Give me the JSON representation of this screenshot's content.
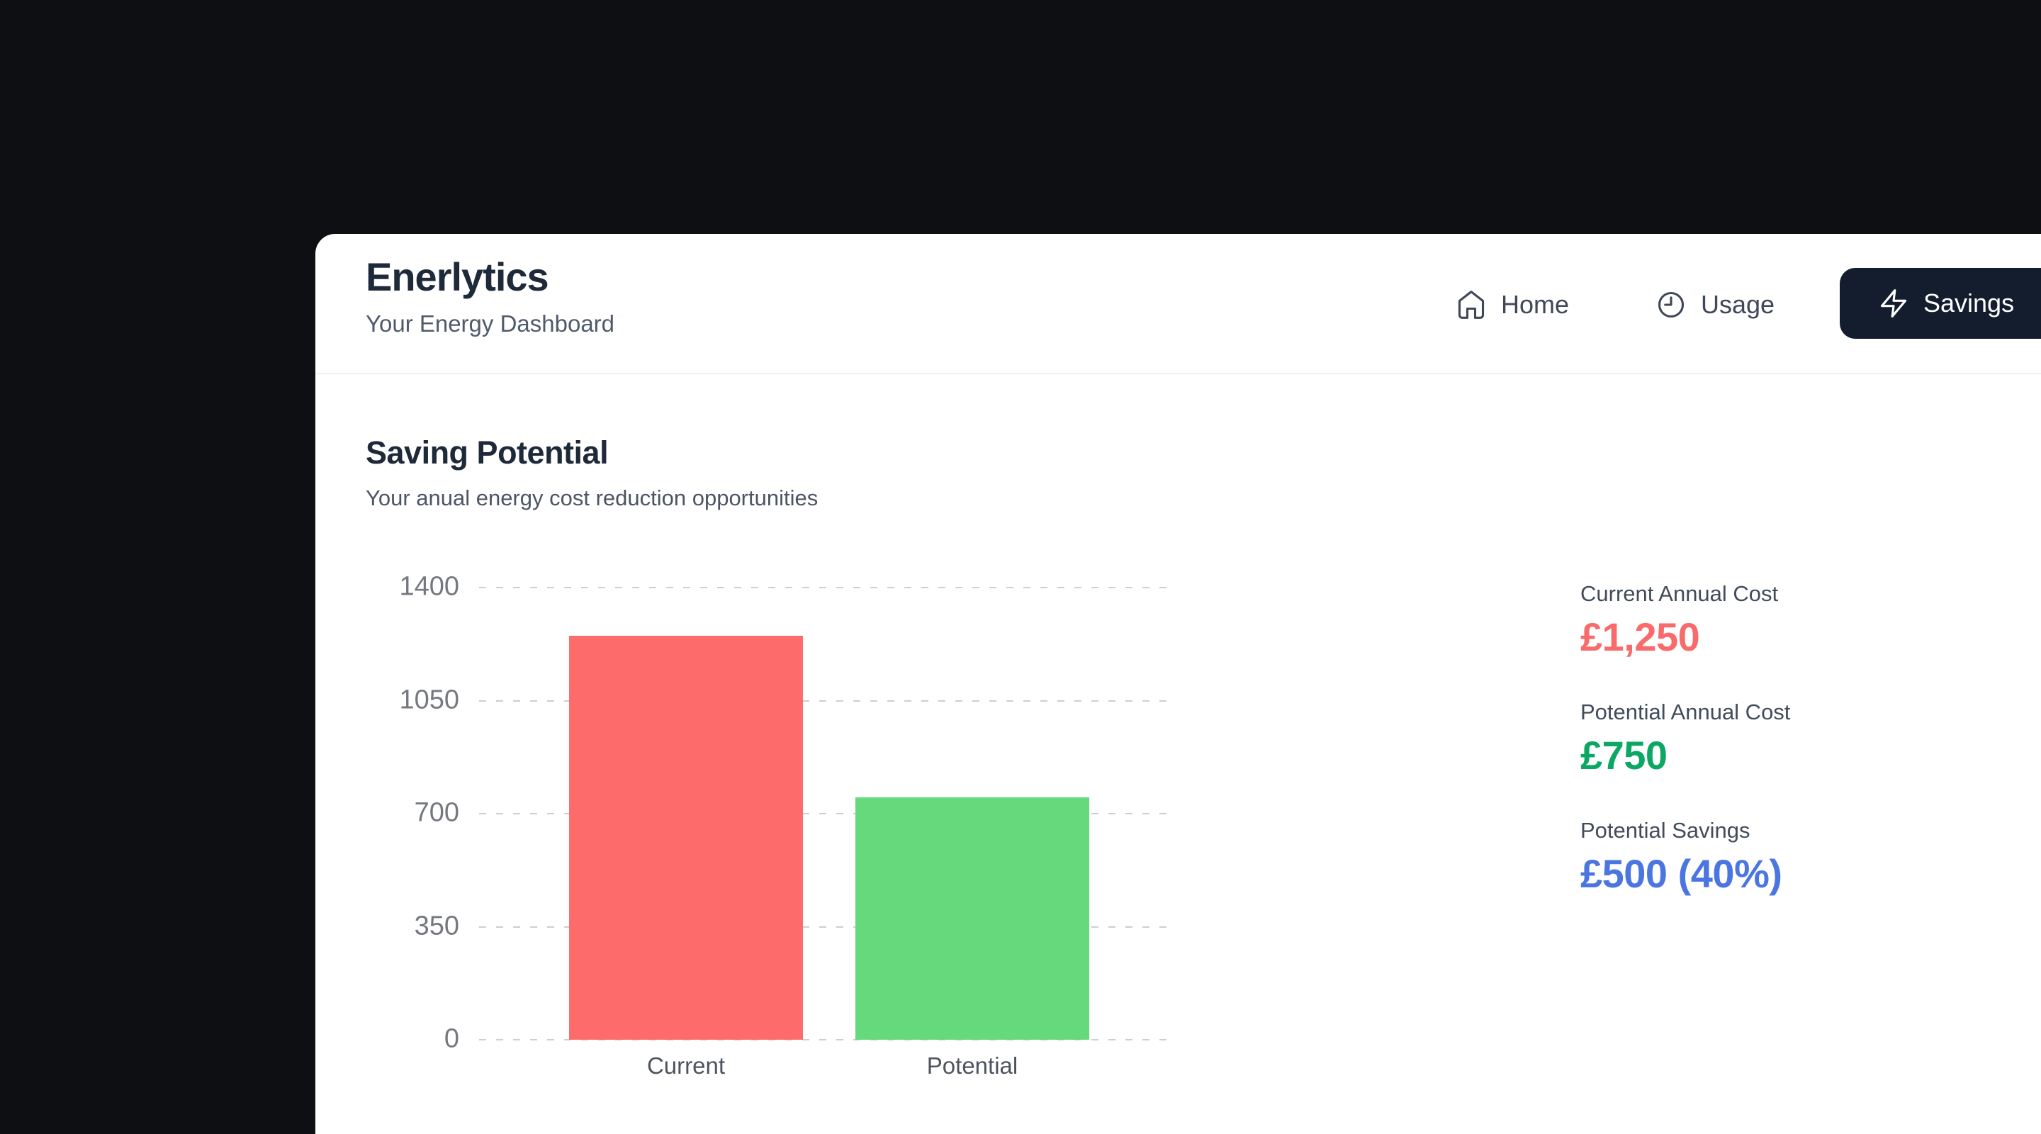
{
  "app": {
    "title": "Enerlytics",
    "subtitle": "Your Energy Dashboard"
  },
  "nav": {
    "items": [
      {
        "label": "Home",
        "icon": "home-icon",
        "active": false
      },
      {
        "label": "Usage",
        "icon": "clock-icon",
        "active": false
      },
      {
        "label": "Savings",
        "icon": "zap-icon",
        "active": true
      }
    ]
  },
  "section": {
    "title": "Saving Potential",
    "subtitle": "Your anual energy cost reduction opportunities"
  },
  "chart_data": {
    "type": "bar",
    "categories": [
      "Current",
      "Potential"
    ],
    "values": [
      1250,
      750
    ],
    "colors": [
      "#fd6b6b",
      "#67d97d"
    ],
    "yticks": [
      1400,
      1050,
      700,
      350,
      0
    ],
    "ylim": [
      0,
      1400
    ],
    "grid": "dashed-horizontal",
    "legend": "none",
    "title": "Saving Potential",
    "xlabel": "",
    "ylabel": ""
  },
  "stats": {
    "items": [
      {
        "label": "Current Annual Cost",
        "value": "£1,250",
        "color": "#f96a6a"
      },
      {
        "label": "Potential Annual Cost",
        "value": "£750",
        "color": "#0ca765"
      },
      {
        "label": "Potential Savings",
        "value": "£500 (40%)",
        "color": "#4b76e0"
      }
    ]
  },
  "theme": {
    "page_bg": "#0e0f13",
    "card_bg": "#ffffff",
    "active_nav_bg": "#131d2d"
  }
}
